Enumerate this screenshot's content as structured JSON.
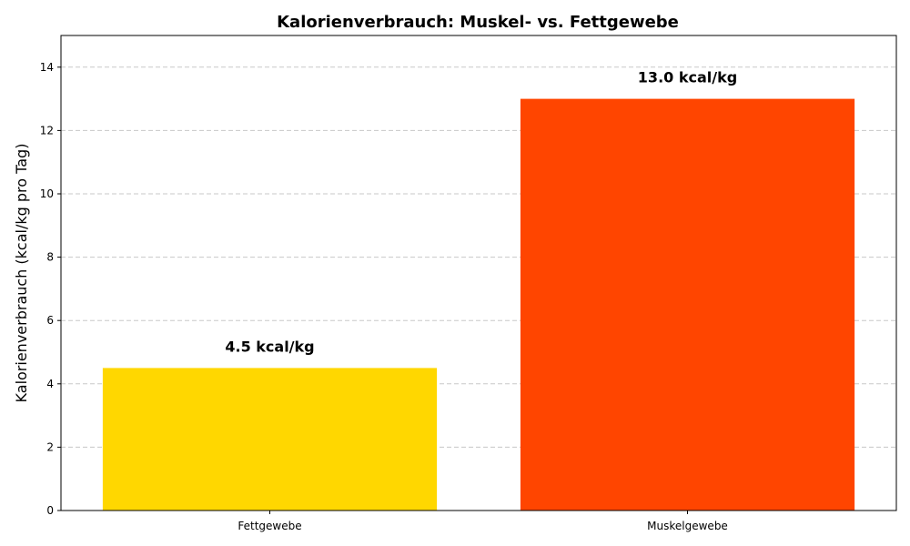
{
  "chart_data": {
    "type": "bar",
    "title": "Kalorienverbrauch: Muskel- vs. Fettgewebe",
    "xlabel": "",
    "ylabel": "Kalorienverbrauch (kcal/kg pro Tag)",
    "categories": [
      "Fettgewebe",
      "Muskelgewebe"
    ],
    "values": [
      4.5,
      13.0
    ],
    "data_labels": [
      "4.5 kcal/kg",
      "13.0 kcal/kg"
    ],
    "colors": [
      "#FFD700",
      "#FF4500"
    ],
    "ylim": [
      0,
      15
    ],
    "yticks": [
      0,
      2,
      4,
      6,
      8,
      10,
      12,
      14
    ],
    "grid": "y-dashed",
    "legend": "none"
  }
}
